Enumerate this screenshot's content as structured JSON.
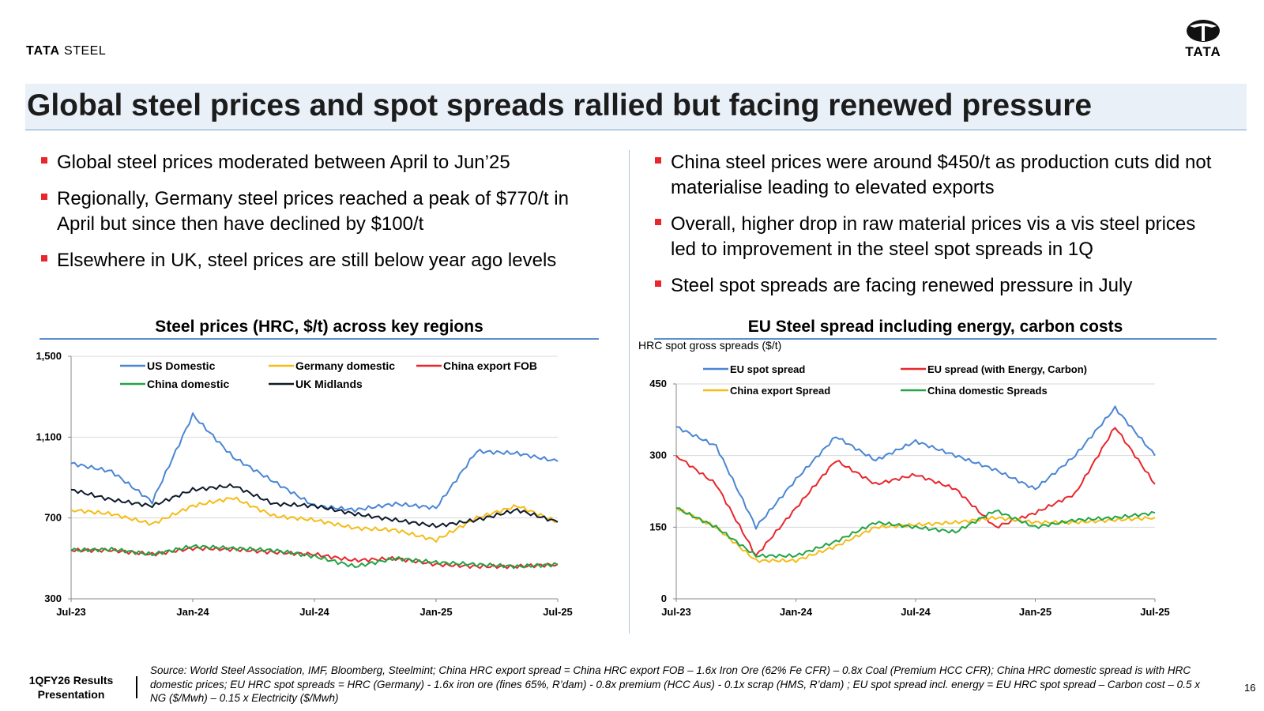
{
  "header": {
    "brand_left_bold": "TATA",
    "brand_left_rest": " STEEL",
    "brand_right_word": "TATA",
    "title": "Global steel prices and spot spreads rallied but facing renewed pressure"
  },
  "bullets_left": [
    "Global steel prices moderated between April to Jun’25",
    "Regionally, Germany steel prices reached a peak of $770/t in April but since then have declined by $100/t",
    "Elsewhere in UK, steel prices are still below year ago levels"
  ],
  "bullets_right": [
    "China steel prices were around $450/t as production cuts did not materialise leading to elevated exports",
    "Overall, higher drop in raw material prices vis a vis steel prices led to improvement in the steel spot spreads in 1Q",
    "Steel spot spreads are facing renewed pressure in July"
  ],
  "chart_data": [
    {
      "type": "line",
      "title": "Steel prices (HRC, $/t) across key regions",
      "xlabel": "",
      "ylabel": "",
      "x": [
        "Jul-23",
        "Sep-23",
        "Nov-23",
        "Jan-24",
        "Mar-24",
        "May-24",
        "Jul-24",
        "Sep-24",
        "Nov-24",
        "Jan-25",
        "Mar-25",
        "May-25",
        "Jul-25"
      ],
      "x_ticks": [
        "Jul-23",
        "Jan-24",
        "Jul-24",
        "Jan-25",
        "Jul-25"
      ],
      "y_ticks": [
        "300",
        "700",
        "1,100",
        "1,500"
      ],
      "ylim": [
        300,
        1500
      ],
      "grid": true,
      "series": [
        {
          "name": "US Domestic",
          "color": "#4a86d4",
          "values": [
            970,
            930,
            780,
            1210,
            1000,
            880,
            760,
            740,
            770,
            750,
            1030,
            1020,
            980
          ]
        },
        {
          "name": "Germany domestic",
          "color": "#f5bc16",
          "values": [
            740,
            720,
            670,
            760,
            800,
            710,
            690,
            650,
            640,
            590,
            700,
            760,
            680
          ]
        },
        {
          "name": "China export FOB",
          "color": "#e8262c",
          "values": [
            540,
            540,
            520,
            550,
            545,
            530,
            520,
            490,
            500,
            470,
            460,
            460,
            470
          ]
        },
        {
          "name": "China domestic",
          "color": "#22a447",
          "values": [
            540,
            545,
            520,
            560,
            550,
            540,
            510,
            460,
            500,
            480,
            470,
            460,
            470
          ]
        },
        {
          "name": "UK Midlands",
          "color": "#0e1a2b",
          "values": [
            840,
            790,
            760,
            840,
            860,
            770,
            760,
            720,
            690,
            660,
            690,
            740,
            680
          ]
        }
      ]
    },
    {
      "type": "line",
      "title": "EU Steel spread including energy, carbon costs",
      "subtitle": "HRC spot gross spreads ($/t)",
      "xlabel": "",
      "ylabel": "",
      "x": [
        "Jul-23",
        "Sep-23",
        "Nov-23",
        "Jan-24",
        "Mar-24",
        "May-24",
        "Jul-24",
        "Sep-24",
        "Nov-24",
        "Jan-25",
        "Mar-25",
        "May-25",
        "Jul-25"
      ],
      "x_ticks": [
        "Jul-23",
        "Jan-24",
        "Jul-24",
        "Jan-25",
        "Jul-25"
      ],
      "y_ticks": [
        "0",
        "150",
        "300",
        "450"
      ],
      "ylim": [
        0,
        450
      ],
      "grid": true,
      "series": [
        {
          "name": "EU spot spread",
          "color": "#4a86d4",
          "values": [
            360,
            320,
            150,
            250,
            340,
            290,
            330,
            300,
            270,
            230,
            300,
            400,
            300
          ]
        },
        {
          "name": "EU spread (with Energy, Carbon)",
          "color": "#e8262c",
          "values": [
            300,
            240,
            90,
            190,
            290,
            240,
            260,
            230,
            150,
            180,
            220,
            360,
            240
          ]
        },
        {
          "name": "China export Spread",
          "color": "#f5bc16",
          "values": [
            190,
            150,
            80,
            80,
            110,
            150,
            155,
            160,
            170,
            160,
            160,
            165,
            170
          ]
        },
        {
          "name": "China domestic Spreads",
          "color": "#22a447",
          "values": [
            190,
            150,
            90,
            90,
            120,
            160,
            150,
            140,
            185,
            150,
            165,
            170,
            180
          ]
        }
      ]
    }
  ],
  "footer": {
    "presentation_label": "1QFY26 Results Presentation",
    "source": "Source: World Steel Association, IMF, Bloomberg, Steelmint; China HRC export spread = China HRC export FOB – 1.6x Iron Ore (62% Fe CFR) – 0.8x Coal (Premium HCC CFR);  China HRC domestic spread is with HRC domestic prices;  EU HRC spot spreads = HRC (Germany) - 1.6x iron ore (fines 65%, R’dam) - 0.8x premium (HCC Aus) - 0.1x scrap (HMS, R’dam) ; EU spot spread incl. energy = EU HRC spot spread – Carbon cost – 0.5 x NG ($/Mwh) – 0.15 x Electricity ($/Mwh)",
    "page_number": "16"
  }
}
